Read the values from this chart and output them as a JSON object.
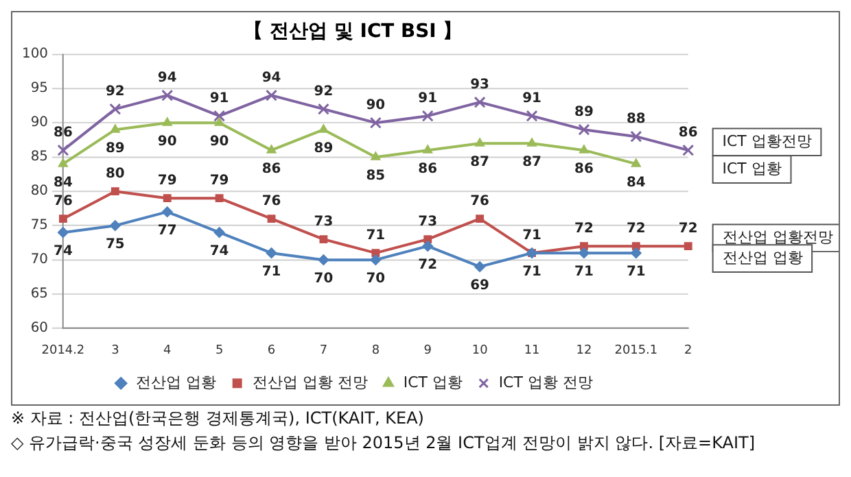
{
  "chart_data": {
    "type": "line",
    "title": "【 전산업 및 ICT BSI 】",
    "categories": [
      "2014.2",
      "3",
      "4",
      "5",
      "6",
      "7",
      "8",
      "9",
      "10",
      "11",
      "12",
      "2015.1",
      "2"
    ],
    "series": [
      {
        "name": "전산업 업황",
        "color": "#4f81bd",
        "marker": "diamond",
        "values": [
          74,
          75,
          77,
          74,
          71,
          70,
          70,
          72,
          69,
          71,
          71,
          71,
          null
        ]
      },
      {
        "name": "전산업 업황 전망",
        "color": "#c0504d",
        "marker": "square",
        "values": [
          76,
          80,
          79,
          79,
          76,
          73,
          71,
          73,
          76,
          71,
          72,
          72,
          72
        ]
      },
      {
        "name": "ICT 업황",
        "color": "#9bbb59",
        "marker": "triangle",
        "values": [
          84,
          89,
          90,
          90,
          86,
          89,
          85,
          86,
          87,
          87,
          86,
          84,
          null
        ]
      },
      {
        "name": "ICT 업황 전망",
        "color": "#8064a2",
        "marker": "cross",
        "values": [
          86,
          92,
          94,
          91,
          94,
          92,
          90,
          91,
          93,
          91,
          89,
          88,
          86
        ]
      }
    ],
    "ylim": [
      60,
      100
    ],
    "yticks": [
      60,
      65,
      70,
      75,
      80,
      85,
      90,
      95,
      100
    ],
    "grid": "y",
    "legend": "bottom",
    "data_labels": true,
    "annotations": [
      "ICT 업황전망",
      "ICT 업황",
      "전산업 업황전망",
      "전산업 업황",
      "※ 자료 : 전산업(한국은행 경제통계국), ICT(KAIT, KEA)",
      "◇ 유가급락·중국 성장세 둔화 등의 영향을 받아 2015년 2월 ICT업계 전망이 밝지 않다. [자료=KAIT]"
    ]
  }
}
